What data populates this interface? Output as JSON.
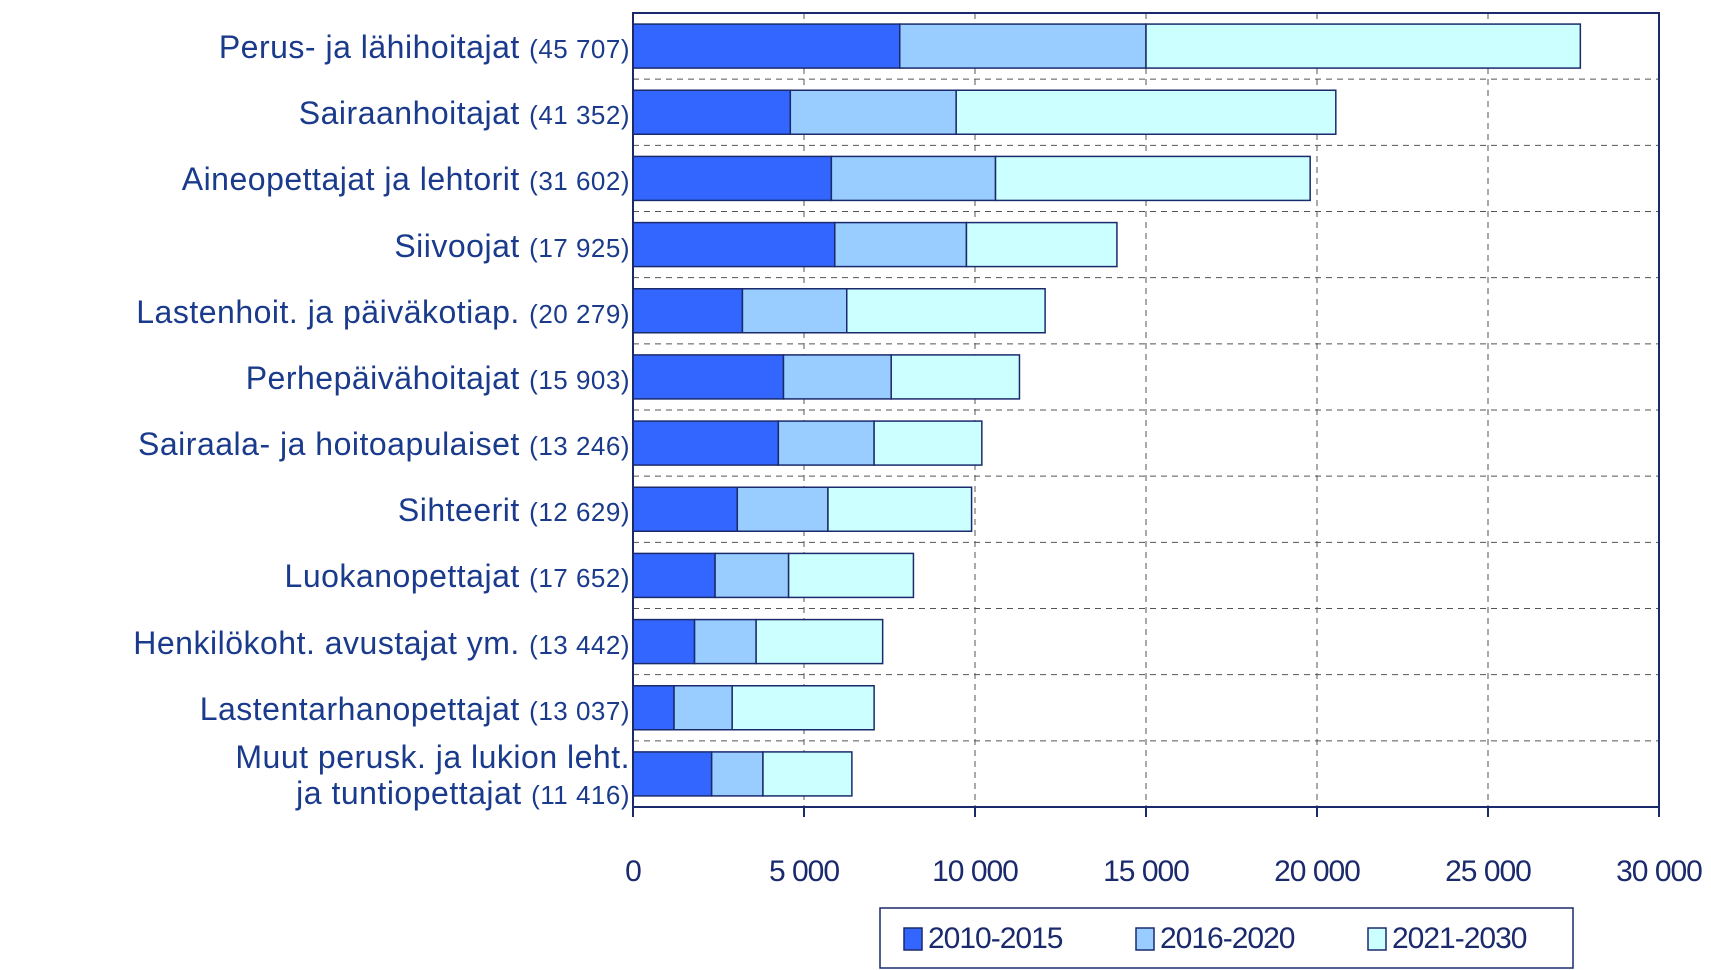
{
  "chart_data": {
    "type": "stacked_bar_horizontal",
    "categories": [
      "Perus- ja lähihoitajat",
      "Sairaanhoitajat",
      "Aineopettajat ja lehtorit",
      "Siivoojat",
      "Lastenhoit. ja päiväkotiap.",
      "Perhepäivähoitajat",
      "Sairaala- ja hoitoapulaiset",
      "Sihteerit",
      "Luokanopettajat",
      "Henkilökoht. avustajat ym.",
      "Lastentarhanopettajat",
      "Muut perusk. ja lukion leht.\nja tuntiopettajat"
    ],
    "category_counts": [
      "(45 707)",
      "(41 352)",
      "(31 602)",
      "(17 925)",
      "(20 279)",
      "(15 903)",
      "(13 246)",
      "(12 629)",
      "(17 652)",
      "(13 442)",
      "(13 037)",
      "(11 416)"
    ],
    "series": [
      {
        "name": "2010-2015",
        "color": "#3366ff",
        "values": [
          7800,
          4600,
          5800,
          5900,
          3200,
          4400,
          4250,
          3050,
          2400,
          1800,
          1200,
          2300
        ]
      },
      {
        "name": "2016-2020",
        "color": "#99ccff",
        "values": [
          7200,
          4850,
          4800,
          3850,
          3050,
          3150,
          2800,
          2650,
          2150,
          1800,
          1700,
          1500
        ]
      },
      {
        "name": "2021-2030",
        "color": "#ccffff",
        "values": [
          12700,
          11100,
          9200,
          4400,
          5800,
          3750,
          3150,
          4200,
          3650,
          3700,
          4150,
          2600
        ]
      }
    ],
    "xlim": [
      0,
      30000
    ],
    "xticks": [
      0,
      {
        "value": 5000,
        "label": "5 000"
      },
      {
        "value": 10000,
        "label": "10 000"
      },
      {
        "value": 15000,
        "label": "15 000"
      },
      {
        "value": 20000,
        "label": "20 000"
      },
      {
        "value": 25000,
        "label": "25 000"
      },
      {
        "value": 30000,
        "label": "30 000"
      }
    ],
    "grid": true,
    "legend": "bottom"
  }
}
